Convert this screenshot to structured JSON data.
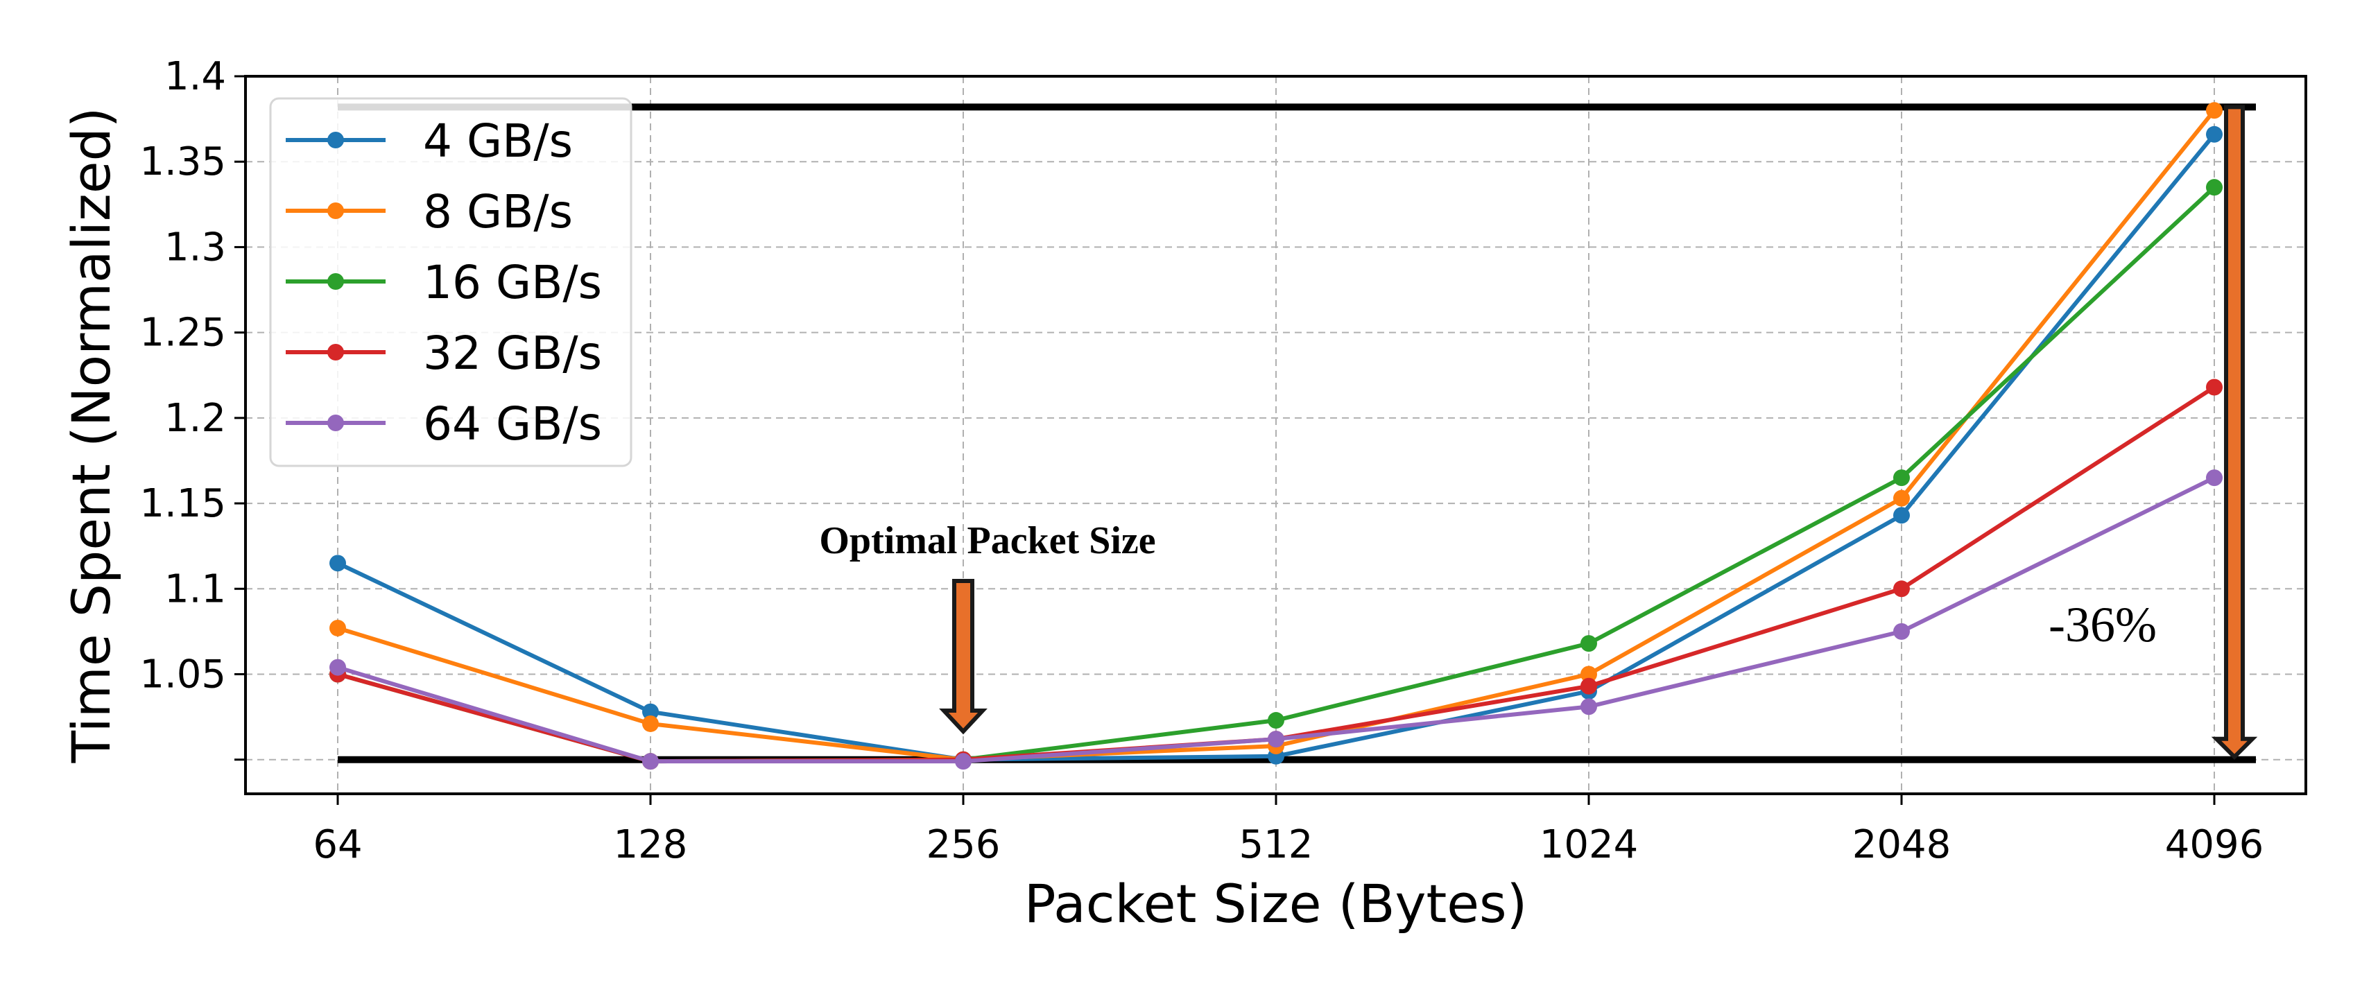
{
  "chart_data": {
    "type": "line",
    "title": "",
    "xlabel": "Packet Size (Bytes)",
    "ylabel": "Time Spent (Normalized)",
    "categories": [
      "64",
      "128",
      "256",
      "512",
      "1024",
      "2048",
      "4096"
    ],
    "ylim": [
      0.98,
      1.4
    ],
    "yticks": [
      {
        "value": 1.4,
        "label": "1.4"
      },
      {
        "value": 1.35,
        "label": "1.35"
      },
      {
        "value": 1.3,
        "label": "1.3"
      },
      {
        "value": 1.25,
        "label": "1.25"
      },
      {
        "value": 1.2,
        "label": "1.2"
      },
      {
        "value": 1.15,
        "label": "1.15"
      },
      {
        "value": 1.1,
        "label": "1.1"
      },
      {
        "value": 1.05,
        "label": "1.05"
      },
      {
        "value": 1.0,
        "label": ""
      }
    ],
    "grid": true,
    "legend_position": "top-left",
    "series": [
      {
        "name": "4 GB/s",
        "color": "#1f77b4",
        "values": [
          1.115,
          1.028,
          1.0,
          1.002,
          1.04,
          1.143,
          1.366
        ]
      },
      {
        "name": "8 GB/s",
        "color": "#ff7f0e",
        "values": [
          1.077,
          1.021,
          1.0,
          1.008,
          1.05,
          1.153,
          1.38
        ]
      },
      {
        "name": "16 GB/s",
        "color": "#2ca02c",
        "values": [
          1.05,
          0.999,
          1.0,
          1.023,
          1.068,
          1.165,
          1.335
        ]
      },
      {
        "name": "32 GB/s",
        "color": "#d62728",
        "values": [
          1.05,
          0.999,
          1.0,
          1.012,
          1.043,
          1.1,
          1.218
        ]
      },
      {
        "name": "64 GB/s",
        "color": "#9467bd",
        "values": [
          1.054,
          0.999,
          0.999,
          1.012,
          1.031,
          1.075,
          1.165
        ]
      }
    ],
    "reference_lines": {
      "top": 1.382,
      "bottom": 1.0
    },
    "annotations": {
      "optimal_label": "Optimal Packet Size",
      "optimal_category": "256",
      "reduction_label": "-36%",
      "arrow_color": "#e8702a"
    }
  }
}
